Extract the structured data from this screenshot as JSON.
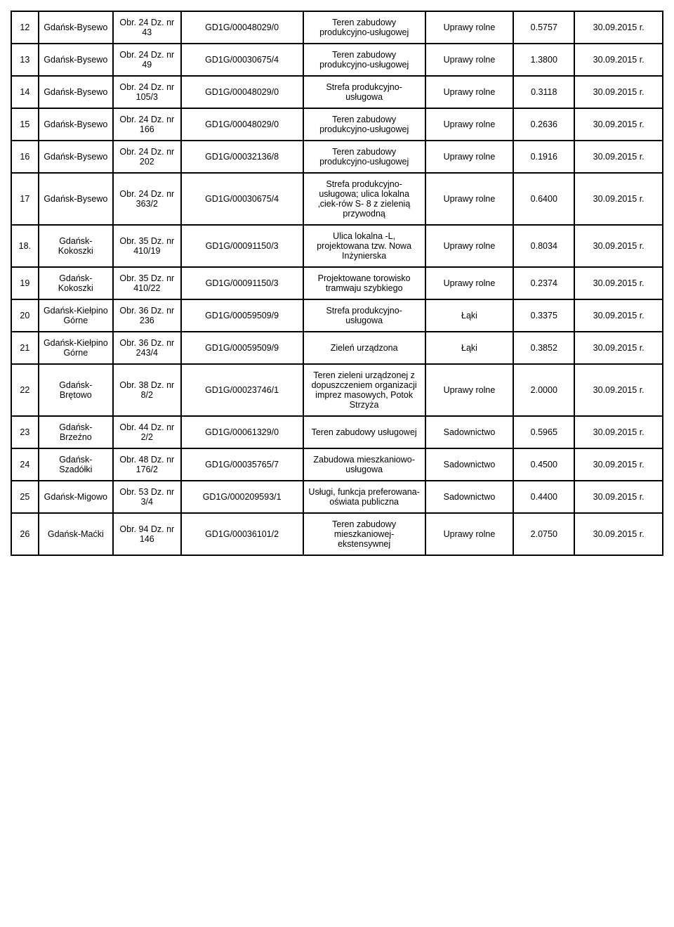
{
  "table": {
    "column_widths_pct": [
      4,
      11,
      10,
      18,
      18,
      13,
      9,
      13
    ],
    "border_color": "#000000",
    "background_color": "#ffffff",
    "text_color": "#000000",
    "font_family": "Arial",
    "font_size_pt": 9,
    "rows": [
      {
        "num": "12",
        "loc": "Gdańsk-Bysewo",
        "obr": "Obr. 24 Dz. nr 43",
        "kw": "GD1G/00048029/0",
        "desc": "Teren zabudowy produkcyjno-usługowej",
        "use": "Uprawy rolne",
        "area": "0.5757",
        "date": "30.09.2015 r."
      },
      {
        "num": "13",
        "loc": "Gdańsk-Bysewo",
        "obr": "Obr. 24 Dz. nr 49",
        "kw": "GD1G/00030675/4",
        "desc": "Teren zabudowy produkcyjno-usługowej",
        "use": "Uprawy rolne",
        "area": "1.3800",
        "date": "30.09.2015 r."
      },
      {
        "num": "14",
        "loc": "Gdańsk-Bysewo",
        "obr": "Obr. 24 Dz. nr 105/3",
        "kw": "GD1G/00048029/0",
        "desc": "Strefa produkcyjno-usługowa",
        "use": "Uprawy rolne",
        "area": "0.3118",
        "date": "30.09.2015 r."
      },
      {
        "num": "15",
        "loc": "Gdańsk-Bysewo",
        "obr": "Obr. 24 Dz. nr 166",
        "kw": "GD1G/00048029/0",
        "desc": "Teren zabudowy produkcyjno-usługowej",
        "use": "Uprawy rolne",
        "area": "0.2636",
        "date": "30.09.2015 r."
      },
      {
        "num": "16",
        "loc": "Gdańsk-Bysewo",
        "obr": "Obr. 24 Dz. nr 202",
        "kw": "GD1G/00032136/8",
        "desc": "Teren zabudowy produkcyjno-usługowej",
        "use": "Uprawy rolne",
        "area": "0.1916",
        "date": "30.09.2015 r."
      },
      {
        "num": "17",
        "loc": "Gdańsk-Bysewo",
        "obr": "Obr. 24 Dz. nr 363/2",
        "kw": "GD1G/00030675/4",
        "desc": "Strefa produkcyjno-usługowa; ulica lokalna ‚ciek-rów S- 8 z zielenią przywodną",
        "use": "Uprawy rolne",
        "area": "0.6400",
        "date": "30.09.2015 r."
      },
      {
        "num": "18.",
        "loc": "Gdańsk-Kokoszki",
        "obr": "Obr. 35 Dz. nr 410/19",
        "kw": "GD1G/00091150/3",
        "desc": "Ulica lokalna -L, projektowana tzw. Nowa Inżynierska",
        "use": "Uprawy rolne",
        "area": "0.8034",
        "date": "30.09.2015 r."
      },
      {
        "num": "19",
        "loc": "Gdańsk-Kokoszki",
        "obr": "Obr. 35 Dz. nr 410/22",
        "kw": "GD1G/00091150/3",
        "desc": "Projektowane torowisko tramwaju szybkiego",
        "use": "Uprawy rolne",
        "area": "0.2374",
        "date": "30.09.2015 r."
      },
      {
        "num": "20",
        "loc": "Gdańsk-Kiełpino Górne",
        "obr": "Obr. 36 Dz. nr 236",
        "kw": "GD1G/00059509/9",
        "desc": "Strefa produkcyjno-usługowa",
        "use": "Łąki",
        "area": "0.3375",
        "date": "30.09.2015 r."
      },
      {
        "num": "21",
        "loc": "Gdańsk-Kiełpino Górne",
        "obr": "Obr. 36 Dz. nr 243/4",
        "kw": "GD1G/00059509/9",
        "desc": "Zieleń urządzona",
        "use": "Łąki",
        "area": "0.3852",
        "date": "30.09.2015 r."
      },
      {
        "num": "22",
        "loc": "Gdańsk-Brętowo",
        "obr": "Obr. 38 Dz. nr 8/2",
        "kw": "GD1G/00023746/1",
        "desc": "Teren zieleni urządzonej z dopuszczeniem organizacji imprez masowych, Potok Strzyża",
        "use": "Uprawy rolne",
        "area": "2.0000",
        "date": "30.09.2015 r."
      },
      {
        "num": "23",
        "loc": "Gdańsk-Brzeźno",
        "obr": "Obr. 44 Dz. nr 2/2",
        "kw": "GD1G/00061329/0",
        "desc": "Teren zabudowy usługowej",
        "use": "Sadownictwo",
        "area": "0.5965",
        "date": "30.09.2015 r."
      },
      {
        "num": "24",
        "loc": "Gdańsk-Szadółki",
        "obr": "Obr. 48 Dz. nr 176/2",
        "kw": "GD1G/00035765/7",
        "desc": "Zabudowa mieszkaniowo-usługowa",
        "use": "Sadownictwo",
        "area": "0.4500",
        "date": "30.09.2015 r."
      },
      {
        "num": "25",
        "loc": "Gdańsk-Migowo",
        "obr": "Obr. 53 Dz. nr 3/4",
        "kw": "GD1G/000209593/1",
        "desc": "Usługi, funkcja preferowana-oświata publiczna",
        "use": "Sadownictwo",
        "area": "0.4400",
        "date": "30.09.2015 r."
      },
      {
        "num": "26",
        "loc": "Gdańsk-Maćki",
        "obr": "Obr. 94 Dz. nr 146",
        "kw": "GD1G/00036101/2",
        "desc": "Teren zabudowy mieszkaniowej-ekstensywnej",
        "use": "Uprawy rolne",
        "area": "2.0750",
        "date": "30.09.2015 r."
      }
    ]
  }
}
